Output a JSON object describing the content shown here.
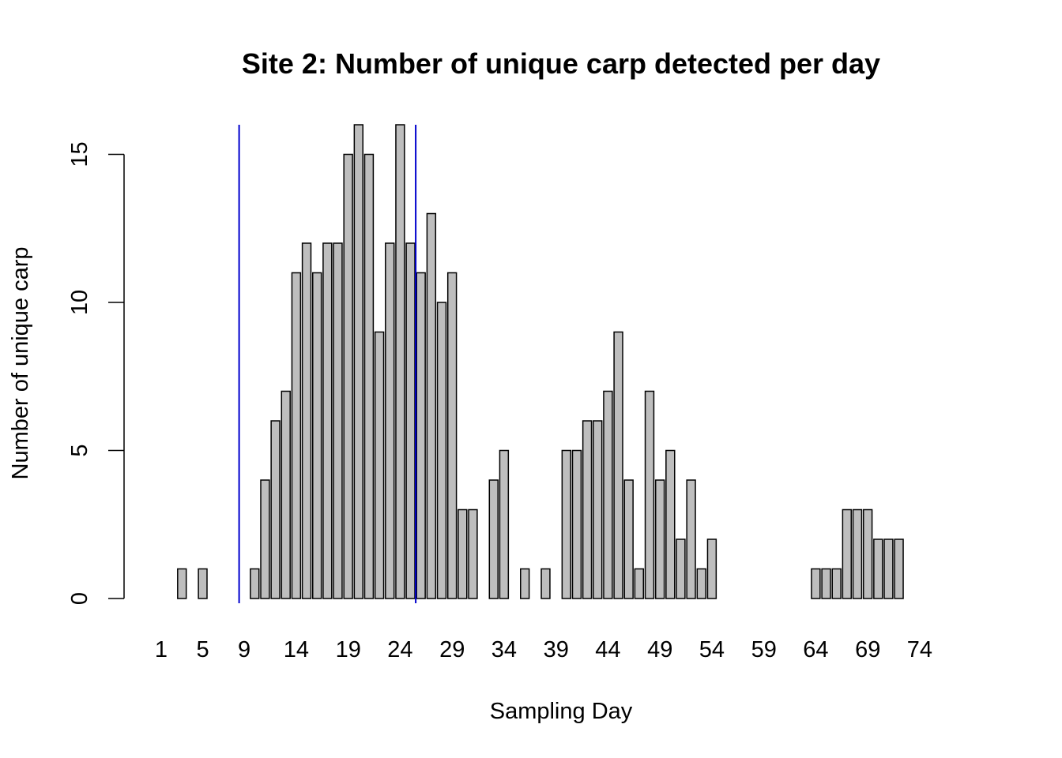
{
  "chart_data": {
    "type": "bar",
    "title": "Site 2: Number of unique carp detected per day",
    "xlabel": "Sampling Day",
    "ylabel": "Number of unique carp",
    "x_tick_labels": [
      "1",
      "5",
      "9",
      "14",
      "19",
      "24",
      "29",
      "34",
      "39",
      "44",
      "49",
      "54",
      "59",
      "64",
      "69",
      "74"
    ],
    "y_ticks": [
      0,
      5,
      10,
      15
    ],
    "ylim": [
      0,
      16
    ],
    "grid": false,
    "legend": "none",
    "categories": [
      1,
      2,
      3,
      4,
      5,
      6,
      7,
      8,
      9,
      10,
      11,
      12,
      13,
      14,
      15,
      16,
      17,
      18,
      19,
      20,
      21,
      22,
      23,
      24,
      25,
      26,
      27,
      28,
      29,
      30,
      31,
      32,
      33,
      34,
      35,
      36,
      37,
      38,
      39,
      40,
      41,
      42,
      43,
      44,
      45,
      46,
      47,
      48,
      49,
      50,
      51,
      52,
      53,
      54,
      55,
      56,
      57,
      58,
      59,
      60,
      61,
      62,
      63,
      64,
      65,
      66,
      67,
      68,
      69,
      70,
      71,
      72,
      73,
      74,
      75,
      76,
      77,
      78
    ],
    "values": [
      0,
      0,
      1,
      0,
      1,
      0,
      0,
      0,
      0,
      1,
      4,
      6,
      7,
      11,
      12,
      11,
      12,
      12,
      15,
      16,
      15,
      9,
      12,
      16,
      12,
      11,
      13,
      10,
      11,
      3,
      3,
      0,
      4,
      5,
      0,
      1,
      0,
      1,
      0,
      5,
      5,
      6,
      6,
      7,
      9,
      4,
      1,
      7,
      4,
      5,
      2,
      4,
      1,
      2,
      0,
      0,
      0,
      0,
      0,
      0,
      0,
      0,
      0,
      1,
      1,
      1,
      3,
      3,
      3,
      2,
      2,
      2,
      0,
      0,
      0,
      0,
      0,
      0
    ],
    "reference_lines_x": [
      8.5,
      25.5
    ],
    "colors": {
      "bar_fill": "#bebebe",
      "bar_stroke": "#000000",
      "reference_line": "#0000cd"
    }
  }
}
